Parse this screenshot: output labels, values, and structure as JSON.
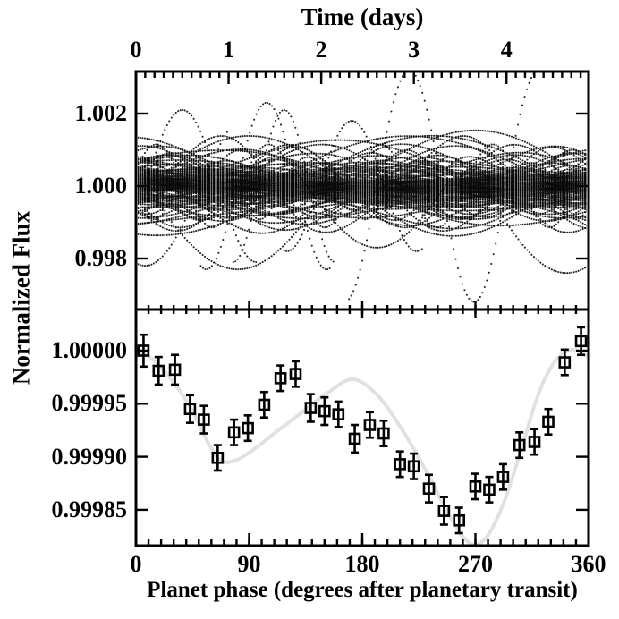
{
  "figure": {
    "background": "#ffffff",
    "ink_color": "#000000",
    "model_curve_color": "#dde3e2"
  },
  "labels": {
    "top_axis_title": "Time (days)",
    "left_axis_title": "Normalized Flux",
    "bottom_axis_title": "Planet phase (degrees after planetary transit)"
  },
  "chart_data": [
    {
      "type": "line",
      "panel": "top",
      "subtype": "dotted-lightcurve-ensemble",
      "xlabel": "Time (days)",
      "ylabel": "Normalized Flux",
      "x_range_days": [
        0,
        4.886
      ],
      "x_major_ticks": [
        0,
        1,
        2,
        3,
        4
      ],
      "x_major_tick_labels": [
        "0",
        "1",
        "2",
        "3",
        "4"
      ],
      "x_minor_step_days": 0.1,
      "y_range": [
        0.99672,
        1.00312
      ],
      "y_major_ticks": [
        0.998,
        1.0,
        1.002
      ],
      "y_tick_labels": [
        "0.998",
        "1.000",
        "1.002"
      ],
      "grid": false,
      "legend": "none",
      "description": "Dense ensemble of many dotted stellar light curves centred on flux 1.000; near-solid band within about +/-0.0008, sparser envelope to +/-0.0012, and individual sinusoidal outlier curves reaching about 1.003 (near day 3) and 0.9968 (near day 3.65).",
      "band_core_halfwidth": 0.0008,
      "band_envelope_halfwidth": 0.00115,
      "ensemble": {
        "seed": 1337,
        "n_random_curves": 150,
        "amp_min": 8e-05,
        "amp_sigma": 0.00042,
        "amp_cap": 0.00115,
        "period_range_days": [
          1.0,
          8.0
        ],
        "n_medium_curves": 14,
        "medium_amp_range": [
          0.0011,
          0.0016
        ],
        "dot_step_days": 0.024,
        "dot_radius_px": 1.05,
        "outlier_curves": [
          {
            "amp": 0.0032,
            "period_days": 1.4,
            "t_peak": 2.95,
            "t_range": [
              2.3,
              4.35
            ]
          },
          {
            "amp": 0.0023,
            "period_days": 1.3,
            "t_peak": 1.41,
            "t_range": [
              0.7,
              2.1
            ]
          },
          {
            "amp": 0.0021,
            "period_days": 1.1,
            "t_peak": 1.6,
            "t_range": [
              1.05,
              2.15
            ]
          },
          {
            "amp": 0.0021,
            "period_days": 1.6,
            "t_peak": 0.5,
            "t_range": [
              0.0,
              1.3
            ]
          },
          {
            "amp": 0.0018,
            "period_days": 1.4,
            "t_peak": 2.33,
            "t_range": [
              1.6,
              3.1
            ]
          },
          {
            "amp": 0.0024,
            "period_days": 3.6,
            "t_peak": 2.85,
            "t_range": [
              3.6,
              4.886
            ]
          },
          {
            "amp": 0.0023,
            "period_days": 4.0,
            "t_peak": 3.1,
            "t_range": [
              0.0,
              2.2
            ]
          },
          {
            "amp": 0.0022,
            "period_days": 2.4,
            "t_peak": 1.3,
            "t_range": [
              0.0,
              1.0
            ]
          },
          {
            "amp": 0.0017,
            "period_days": 3.0,
            "t_peak": 1.1,
            "t_range": [
              1.7,
              3.4
            ]
          }
        ]
      }
    },
    {
      "type": "scatter",
      "panel": "bottom",
      "marker": "open-square",
      "error_bars": "vertical-with-caps",
      "xlabel": "Planet phase (degrees after planetary transit)",
      "ylabel": "Normalized Flux",
      "x_range": [
        0,
        360
      ],
      "x_major_ticks": [
        0,
        90,
        180,
        270,
        360
      ],
      "x_major_tick_labels": [
        "0",
        "90",
        "180",
        "270",
        "360"
      ],
      "x_minor_step": 10,
      "y_range": [
        0.999814,
        1.000039
      ],
      "y_major_ticks": [
        0.99985,
        0.9999,
        0.99995,
        1.0
      ],
      "y_tick_labels": [
        "0.99985",
        "0.99990",
        "0.99995",
        "1.00000"
      ],
      "grid": false,
      "legend": "none",
      "points_format": [
        "phase_deg",
        "normalized_flux",
        "flux_error"
      ],
      "points": [
        [
          6,
          1.0,
          1.5e-05
        ],
        [
          18,
          0.999981,
          1.3e-05
        ],
        [
          31,
          0.999982,
          1.4e-05
        ],
        [
          43,
          0.999945,
          1.3e-05
        ],
        [
          54,
          0.999935,
          1.3e-05
        ],
        [
          65,
          0.999899,
          1.2e-05
        ],
        [
          78,
          0.999923,
          1.2e-05
        ],
        [
          89,
          0.999927,
          1.2e-05
        ],
        [
          102,
          0.999949,
          1.2e-05
        ],
        [
          115,
          0.999974,
          1.2e-05
        ],
        [
          127,
          0.999978,
          1.2e-05
        ],
        [
          139,
          0.999946,
          1.3e-05
        ],
        [
          150,
          0.999943,
          1.3e-05
        ],
        [
          161,
          0.99994,
          1.2e-05
        ],
        [
          174,
          0.999917,
          1.3e-05
        ],
        [
          186,
          0.99993,
          1.2e-05
        ],
        [
          197,
          0.999922,
          1.2e-05
        ],
        [
          210,
          0.999893,
          1.2e-05
        ],
        [
          221,
          0.999891,
          1.2e-05
        ],
        [
          233,
          0.99987,
          1.3e-05
        ],
        [
          245,
          0.999849,
          1.3e-05
        ],
        [
          257,
          0.99984,
          1.2e-05
        ],
        [
          270,
          0.999872,
          1.2e-05
        ],
        [
          281,
          0.999869,
          1.2e-05
        ],
        [
          292,
          0.999881,
          1.2e-05
        ],
        [
          305,
          0.999911,
          1.2e-05
        ],
        [
          317,
          0.999914,
          1.2e-05
        ],
        [
          328,
          0.999933,
          1.2e-05
        ],
        [
          341,
          0.999989,
          1.2e-05
        ],
        [
          354,
          1.000009,
          1.3e-05
        ]
      ],
      "model_curve_format": [
        "phase_deg",
        "normalized_flux"
      ],
      "model_curve": [
        [
          0,
          1.000002
        ],
        [
          15,
          0.99999
        ],
        [
          30,
          0.99997
        ],
        [
          45,
          0.999943
        ],
        [
          58,
          0.999912
        ],
        [
          68,
          0.999896
        ],
        [
          80,
          0.999897
        ],
        [
          95,
          0.999908
        ],
        [
          110,
          0.999922
        ],
        [
          130,
          0.99994
        ],
        [
          150,
          0.999958
        ],
        [
          172,
          0.999973
        ],
        [
          192,
          0.999958
        ],
        [
          212,
          0.999925
        ],
        [
          232,
          0.999884
        ],
        [
          250,
          0.999843
        ],
        [
          265,
          0.999819
        ],
        [
          278,
          0.999823
        ],
        [
          292,
          0.999855
        ],
        [
          306,
          0.999905
        ],
        [
          318,
          0.999952
        ],
        [
          328,
          0.99998
        ],
        [
          338,
          0.999996
        ],
        [
          348,
          1.000001
        ],
        [
          360,
          0.999994
        ]
      ]
    }
  ]
}
